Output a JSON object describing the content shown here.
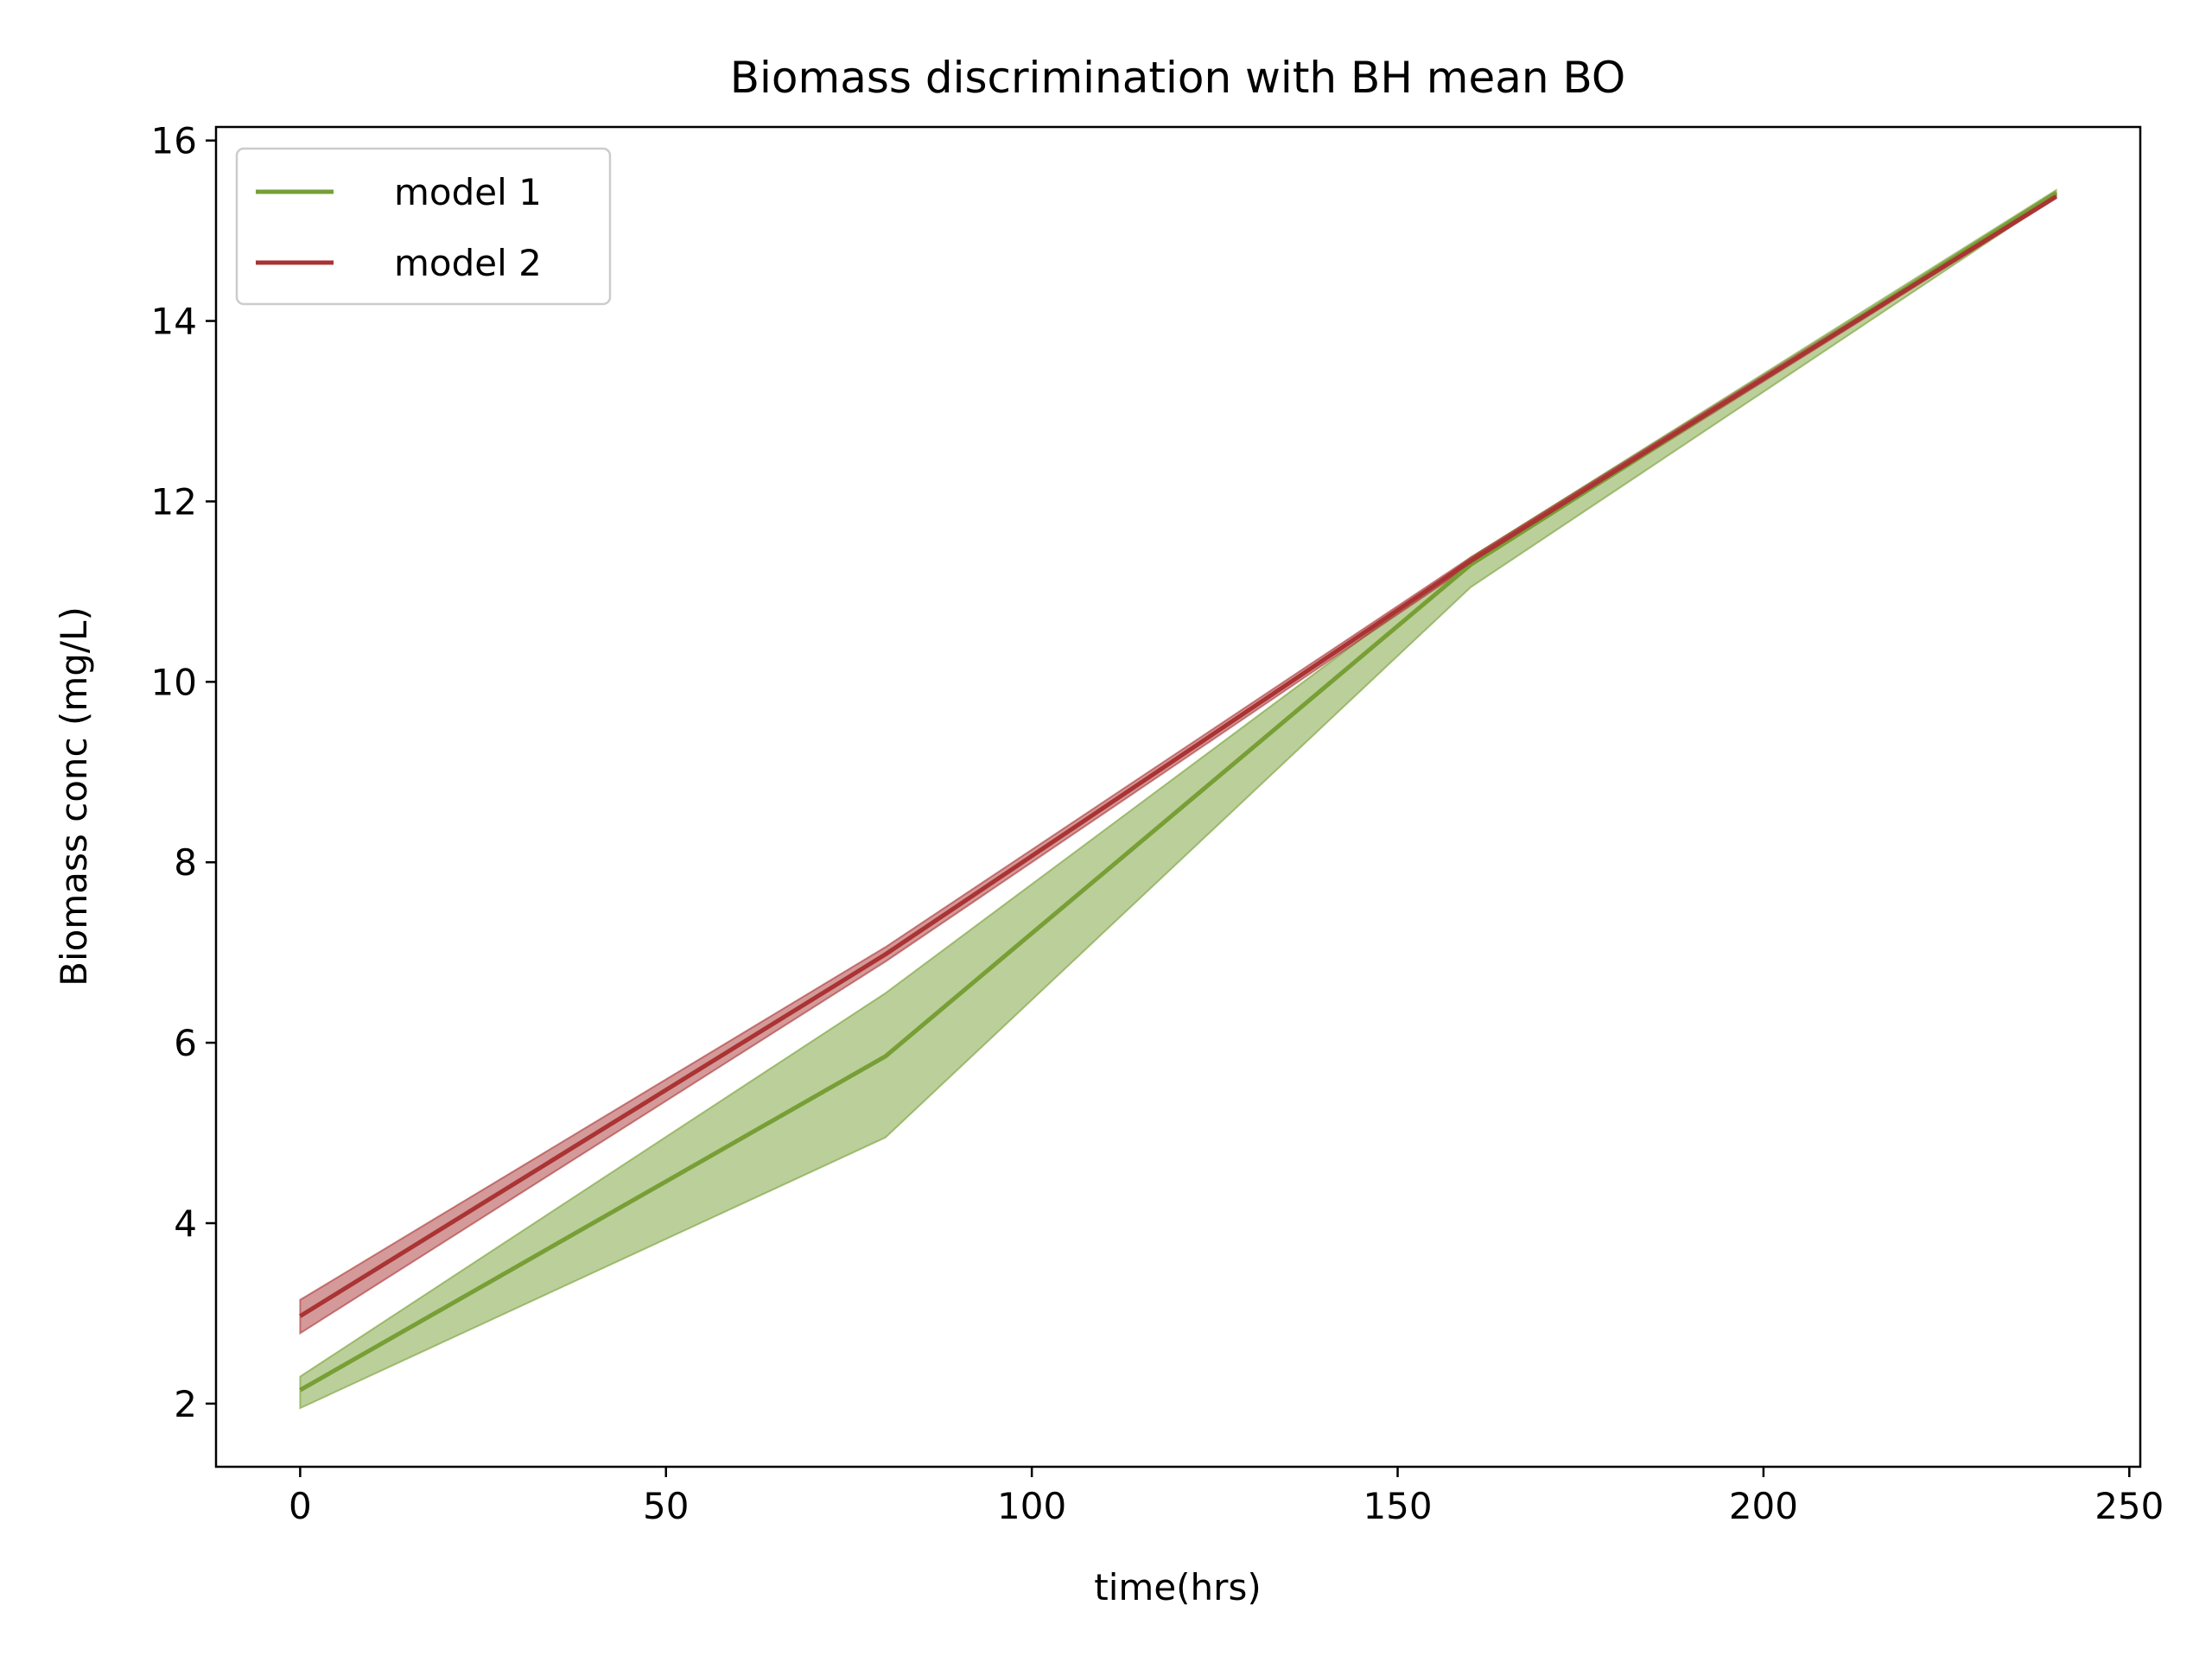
{
  "chart_data": {
    "type": "line",
    "title": "Biomass discrimination with BH mean BO",
    "xlabel": "time(hrs)",
    "ylabel": "Biomass conc (mg/L)",
    "xlim": [
      -11.5,
      251.5
    ],
    "ylim": [
      1.3,
      16.15
    ],
    "xticks": [
      0,
      50,
      100,
      150,
      200,
      250
    ],
    "yticks": [
      2,
      4,
      6,
      8,
      10,
      12,
      14,
      16
    ],
    "grid": false,
    "legend_position": "top-left",
    "series": [
      {
        "name": "model 1",
        "color": "#779f35",
        "x": [
          0,
          80,
          160,
          240
        ],
        "y": [
          2.15,
          5.85,
          11.3,
          15.42
        ],
        "band_low": [
          1.95,
          4.95,
          11.05,
          15.38
        ],
        "band_high": [
          2.3,
          6.55,
          11.38,
          15.45
        ]
      },
      {
        "name": "model 2",
        "color": "#aa3333",
        "x": [
          0,
          80,
          160,
          240
        ],
        "y": [
          2.97,
          6.98,
          11.34,
          15.38
        ],
        "band_low": [
          2.78,
          6.9,
          11.3,
          15.36
        ],
        "band_high": [
          3.15,
          7.06,
          11.38,
          15.41
        ]
      }
    ]
  }
}
